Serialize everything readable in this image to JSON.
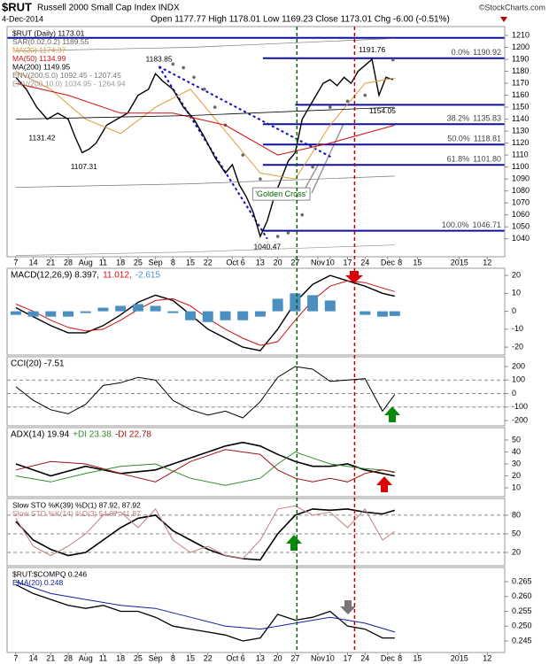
{
  "header": {
    "symbol": "$RUT",
    "name": "Russell 2000 Small Cap Index INDX",
    "credit": "©StockCharts.com",
    "date": "4-Dec-2014",
    "stats": "Open 1177.77  High 1178.01  Low 1169.23  Close 1173.01  Chg -6.00 (-0.51%)"
  },
  "x_axis": {
    "xlim": [
      -0.5,
      28
    ],
    "xticks": [
      {
        "value": 0,
        "label": "7"
      },
      {
        "value": 1,
        "label": "14"
      },
      {
        "value": 2,
        "label": "21"
      },
      {
        "value": 3,
        "label": "28"
      },
      {
        "value": 4,
        "label": "Aug"
      },
      {
        "value": 5,
        "label": "11"
      },
      {
        "value": 6,
        "label": "18"
      },
      {
        "value": 7,
        "label": "25"
      },
      {
        "value": 8,
        "label": "Sep"
      },
      {
        "value": 9,
        "label": "8"
      },
      {
        "value": 10,
        "label": "15"
      },
      {
        "value": 11,
        "label": "22"
      },
      {
        "value": 12.4,
        "label": "Oct"
      },
      {
        "value": 13,
        "label": "6"
      },
      {
        "value": 14,
        "label": "13"
      },
      {
        "value": 15,
        "label": "20"
      },
      {
        "value": 16,
        "label": "27"
      },
      {
        "value": 17.3,
        "label": "Nov"
      },
      {
        "value": 18,
        "label": "10"
      },
      {
        "value": 19,
        "label": "17"
      },
      {
        "value": 20,
        "label": "24"
      },
      {
        "value": 21.3,
        "label": "Dec"
      },
      {
        "value": 22,
        "label": "8"
      },
      {
        "value": 23,
        "label": "15"
      },
      {
        "value": 25.4,
        "label": "2015"
      },
      {
        "value": 27,
        "label": "12"
      }
    ],
    "events": [
      {
        "x": 16.1,
        "color": "#006600"
      },
      {
        "x": 19.4,
        "color": "#c00000"
      }
    ]
  },
  "chart_data": [
    {
      "type": "line",
      "legend": "stacked",
      "ylim": [
        1025,
        1217.4
      ],
      "yticks": [
        1210,
        1200,
        1190,
        1180,
        1170,
        1160,
        1150,
        1140,
        1130,
        1120,
        1110,
        1100,
        1090,
        1080,
        1070,
        1060,
        1050,
        1040
      ],
      "series": [
        {
          "name": "$RUT (Daily) 1173.01",
          "color": "#000000",
          "style": "line",
          "width": 1.4,
          "x": [
            0,
            0.6,
            1.2,
            1.8,
            2.4,
            3.0,
            3.4,
            3.8,
            4.2,
            4.6,
            5.2,
            5.8,
            6.4,
            7.0,
            7.6,
            8.0,
            8.4,
            9.0,
            9.6,
            10.2,
            10.8,
            11.4,
            12.0,
            12.4,
            12.8,
            13.2,
            13.6,
            14.0,
            14.4,
            14.8,
            15.2,
            15.6,
            16.0,
            16.4,
            16.8,
            17.2,
            17.6,
            18.0,
            18.4,
            18.8,
            19.2,
            19.6,
            20.0,
            20.4,
            20.8,
            21.2,
            21.6
          ],
          "values": [
            1175,
            1165,
            1150,
            1140,
            1145,
            1140,
            1125,
            1112,
            1115,
            1120,
            1135,
            1140,
            1145,
            1160,
            1165,
            1178,
            1172,
            1165,
            1150,
            1140,
            1125,
            1108,
            1095,
            1102,
            1085,
            1075,
            1062,
            1042,
            1055,
            1075,
            1090,
            1105,
            1112,
            1140,
            1150,
            1160,
            1170,
            1173,
            1168,
            1175,
            1170,
            1180,
            1185,
            1190,
            1160,
            1175,
            1173.01
          ]
        },
        {
          "name": "SAR(0.02,0.2) 1189.55",
          "color": "#666666",
          "style": "dots",
          "x": [
            9,
            9.6,
            10.2,
            10.8,
            11.4,
            12,
            13,
            14,
            15,
            15.6,
            16.4,
            17,
            18,
            19,
            20,
            21.6
          ],
          "values": [
            1186,
            1183,
            1175,
            1165,
            1150,
            1135,
            1110,
            1090,
            1042,
            1045,
            1060,
            1100,
            1150,
            1155,
            1160,
            1189.55
          ]
        },
        {
          "name": "MA(20) 1174.37",
          "color": "#e09a3a",
          "style": "line",
          "width": 1,
          "x": [
            0,
            2,
            4,
            6,
            8,
            10,
            12,
            14,
            16,
            18,
            20,
            21.7
          ],
          "values": [
            1180,
            1165,
            1140,
            1128,
            1150,
            1165,
            1130,
            1095,
            1090,
            1135,
            1170,
            1174.37
          ]
        },
        {
          "name": "MA(50) 1134.99",
          "color": "#d01010",
          "style": "line",
          "width": 1,
          "x": [
            0,
            3,
            6,
            9,
            12,
            15,
            18,
            21.7
          ],
          "values": [
            1170,
            1160,
            1145,
            1145,
            1135,
            1110,
            1120,
            1134.99
          ]
        },
        {
          "name": "MA(200) 1149.95",
          "color": "#000000",
          "style": "line",
          "width": 0.8,
          "x": [
            0,
            10,
            21.7
          ],
          "values": [
            1140,
            1143,
            1149.95
          ]
        },
        {
          "name": "ENV(200,5.0) 1092.45 - 1207.45",
          "color": "#777777",
          "style": "line",
          "width": 0.7,
          "x": [
            0,
            10,
            21.7
          ],
          "values": [
            1197,
            1200,
            1207.45
          ],
          "lower": [
            1083,
            1086,
            1092.45
          ]
        },
        {
          "name": "ENV(200,10.0) 1034.95 - 1264.94",
          "color": "#999999",
          "style": "line",
          "width": 0.7,
          "x": [
            0,
            10,
            21.7
          ],
          "values": [
            1254,
            1257,
            1264.94
          ],
          "lower": [
            1026,
            1029,
            1034.95
          ]
        }
      ],
      "hlines": [
        {
          "value": 1208,
          "from": -0.5
        },
        {
          "value": 1152,
          "from": 16
        }
      ],
      "fib": {
        "from": 14.15,
        "levels": [
          {
            "label": "0.0%",
            "value": 1190.92
          },
          {
            "label": "38.2%",
            "value": 1135.83
          },
          {
            "label": "50.0%",
            "value": 1118.81
          },
          {
            "label": "61.8%",
            "value": {
              "value": 1101.8,
              "label": "1101.80"
            }
          },
          {
            "label": "100.0%",
            "value": 1046.71
          }
        ]
      },
      "trendlines": [
        {
          "x": [
            8.2,
            14.4
          ],
          "y": [
            1184,
            1040
          ]
        },
        {
          "x": [
            8.2,
            18.1
          ],
          "y": [
            1184,
            1108
          ]
        }
      ],
      "labels": [
        {
          "x": 8.2,
          "value": 1183.85,
          "position": "above"
        },
        {
          "x": 1.5,
          "value": 1131.42,
          "position": "below"
        },
        {
          "x": 3.9,
          "value": 1107.31,
          "position": "below"
        },
        {
          "x": 14.4,
          "value": 1040.47,
          "position": "below"
        },
        {
          "x": 20.4,
          "value": 1191.76,
          "position": "above"
        },
        {
          "x": 21,
          "value": 1154.05,
          "position": "below"
        }
      ],
      "annotation": {
        "text": "'Golden Cross'",
        "x": 15.2,
        "y": 1077
      }
    },
    {
      "type": "line",
      "legend": "inline",
      "ylim": [
        -24.4,
        24
      ],
      "yticks": [
        20,
        10,
        0,
        -10,
        -20
      ],
      "series": [
        {
          "name": "MACD(12,26,9) 8.397,",
          "color": "#000000",
          "style": "line",
          "width": 1.4,
          "x": [
            0,
            1,
            2,
            3,
            4,
            5,
            6,
            7,
            8,
            9,
            10,
            11,
            12,
            13,
            14,
            15,
            16,
            17,
            18,
            19,
            20,
            21,
            21.7
          ],
          "values": [
            2,
            -3,
            -8,
            -12,
            -12,
            -8,
            -2,
            5,
            9,
            6,
            -2,
            -10,
            -15,
            -20,
            -22,
            -10,
            5,
            15,
            20,
            17,
            14,
            10,
            8.397
          ]
        },
        {
          "name": "11.012,",
          "color": "#d01010",
          "style": "line",
          "width": 1,
          "x": [
            0,
            1,
            2,
            3,
            4,
            5,
            6,
            7,
            8,
            9,
            10,
            11,
            12,
            13,
            14,
            15,
            16,
            17,
            18,
            19,
            20,
            21,
            21.7
          ],
          "values": [
            4,
            0,
            -5,
            -9,
            -11,
            -10,
            -5,
            1,
            6,
            7,
            3,
            -4,
            -10,
            -15,
            -19,
            -17,
            -5,
            6,
            14,
            17,
            16,
            13,
            11.012
          ]
        },
        {
          "name": "-2.615",
          "color": "#4a8fc0",
          "style": "bars",
          "x": [
            0,
            1,
            2,
            3,
            4,
            5,
            6,
            7,
            8,
            9,
            10,
            11,
            12,
            13,
            14,
            15,
            16,
            17,
            18,
            19,
            20,
            21,
            21.7
          ],
          "values": [
            -2,
            -3,
            -3,
            -3,
            -1,
            2,
            3,
            4,
            3,
            -1,
            -5,
            -6,
            -5,
            -5,
            -3,
            7,
            10,
            9,
            6,
            0,
            -2,
            -3,
            -2.615
          ]
        }
      ]
    },
    {
      "type": "line",
      "legend": "inline",
      "ylim": [
        -239,
        272
      ],
      "yticks": [
        200,
        100,
        0,
        -100,
        -200
      ],
      "ref_lines": [
        100,
        0,
        -100
      ],
      "series": [
        {
          "name": "CCI(20) -7.51",
          "color": "#000000",
          "style": "line",
          "width": 1,
          "x": [
            0,
            1,
            2,
            3,
            4,
            5,
            6,
            7,
            8,
            9,
            10,
            11,
            12,
            13,
            14,
            15,
            16,
            17,
            18,
            19,
            20,
            21,
            21.7
          ],
          "values": [
            50,
            -50,
            -120,
            -150,
            -80,
            60,
            80,
            120,
            100,
            -50,
            -120,
            -160,
            -130,
            -180,
            -60,
            120,
            200,
            180,
            90,
            100,
            110,
            -130,
            -7.51
          ]
        }
      ]
    },
    {
      "type": "line",
      "legend": "inline",
      "ylim": [
        2.6,
        60.4
      ],
      "yticks": [
        50,
        40,
        30,
        20,
        10
      ],
      "series": [
        {
          "name": "ADX(14) 19.94",
          "color": "#000000",
          "style": "line",
          "width": 1.6,
          "x": [
            0,
            2,
            4,
            6,
            8,
            10,
            12,
            13,
            14,
            15,
            16,
            17,
            18,
            19,
            20,
            21,
            21.7
          ],
          "values": [
            30,
            20,
            28,
            22,
            25,
            35,
            45,
            48,
            45,
            38,
            32,
            28,
            28,
            30,
            25,
            22,
            19.94
          ]
        },
        {
          "name": "+DI 23.38",
          "color": "#2e8b2e",
          "style": "line",
          "width": 1,
          "x": [
            0,
            2,
            4,
            6,
            8,
            10,
            12,
            14,
            15,
            16,
            17,
            18,
            19,
            20,
            21,
            21.7
          ],
          "values": [
            20,
            15,
            22,
            28,
            30,
            18,
            12,
            18,
            30,
            40,
            35,
            30,
            28,
            26,
            25,
            23.38
          ]
        },
        {
          "name": "-DI 22.78",
          "color": "#a01010",
          "style": "line",
          "width": 1,
          "x": [
            0,
            2,
            4,
            6,
            8,
            10,
            12,
            14,
            15,
            16,
            17,
            18,
            19,
            20,
            21,
            21.7
          ],
          "values": [
            25,
            32,
            30,
            22,
            15,
            32,
            42,
            38,
            25,
            18,
            15,
            18,
            15,
            22,
            25,
            22.78
          ]
        }
      ]
    },
    {
      "type": "line",
      "legend": "stacked",
      "ylim": [
        -1.4,
        107
      ],
      "yticks": [
        80,
        50,
        20
      ],
      "ref_lines": [
        80,
        50,
        20
      ],
      "series": [
        {
          "name": "Slow STO %K(39) %D(1) 87.92, 87.92",
          "color": "#000000",
          "style": "line",
          "width": 1.6,
          "x": [
            0,
            1,
            2,
            3,
            4,
            5,
            6,
            7,
            8,
            9,
            10,
            11,
            12,
            13,
            14,
            15,
            16,
            17,
            18,
            19,
            20,
            21,
            21.7
          ],
          "values": [
            70,
            40,
            25,
            15,
            20,
            40,
            60,
            75,
            80,
            55,
            40,
            25,
            15,
            10,
            8,
            50,
            80,
            90,
            88,
            90,
            85,
            82,
            87.92
          ]
        },
        {
          "name": "Slow STO %K(14) %D(3) 54.07, 41.87",
          "color": "#c08080",
          "style": "line",
          "width": 1,
          "x": [
            0,
            1,
            2,
            3,
            4,
            5,
            6,
            7,
            8,
            9,
            10,
            11,
            12,
            13,
            14,
            15,
            16,
            17,
            18,
            19,
            20,
            21,
            21.7
          ],
          "values": [
            75,
            30,
            15,
            30,
            50,
            80,
            85,
            60,
            90,
            40,
            20,
            30,
            15,
            10,
            40,
            90,
            95,
            80,
            85,
            60,
            90,
            40,
            54.07
          ]
        }
      ]
    },
    {
      "type": "line",
      "legend": "stacked",
      "ylim": [
        0.2411,
        0.2698
      ],
      "yticks": [
        0.265,
        {
          "value": 0.26,
          "label": "0.260"
        },
        0.255,
        {
          "value": 0.25,
          "label": "0.250"
        },
        0.245
      ],
      "series": [
        {
          "name": "$RUT:$COMPQ 0.246",
          "color": "#000000",
          "style": "line",
          "width": 1.3,
          "x": [
            0,
            1,
            2,
            3,
            4,
            5,
            6,
            7,
            8,
            9,
            10,
            11,
            12,
            13,
            14,
            15,
            16,
            17,
            18,
            19,
            20,
            21,
            21.7
          ],
          "values": [
            0.264,
            0.261,
            0.259,
            0.257,
            0.256,
            0.257,
            0.255,
            0.255,
            0.253,
            0.25,
            0.249,
            0.248,
            0.247,
            0.245,
            0.246,
            0.254,
            0.252,
            0.253,
            0.255,
            0.25,
            0.249,
            0.246,
            0.246
          ]
        },
        {
          "name": "EMA(20) 0.248",
          "color": "#1020a0",
          "style": "line",
          "width": 1,
          "x": [
            0,
            2,
            4,
            6,
            8,
            10,
            12,
            14,
            16,
            18,
            20,
            21.7
          ],
          "values": [
            0.265,
            0.261,
            0.259,
            0.257,
            0.256,
            0.253,
            0.25,
            0.249,
            0.251,
            0.253,
            0.251,
            0.248
          ]
        }
      ]
    }
  ]
}
